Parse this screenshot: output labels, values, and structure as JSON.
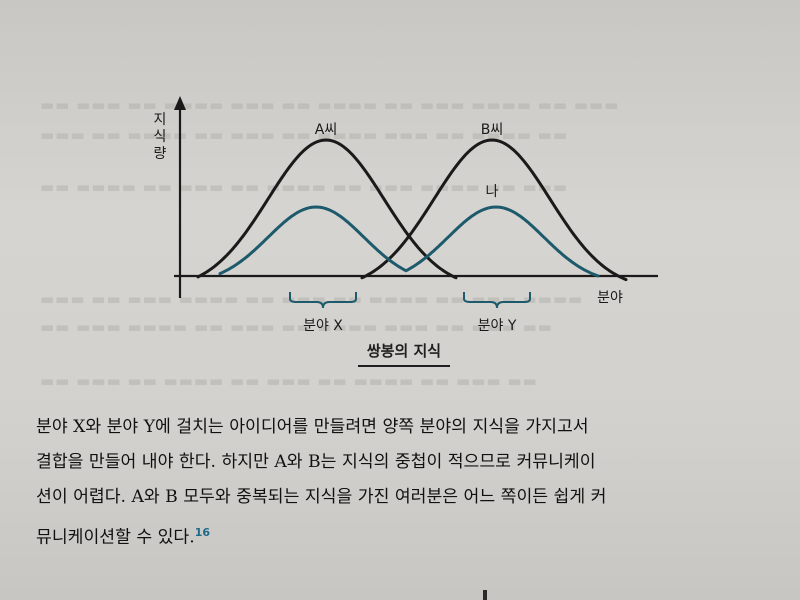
{
  "diagram": {
    "y_axis_label": "지식량",
    "x_axis_label": "분야",
    "curve_a_label": "A씨",
    "curve_b_label": "B씨",
    "curve_na_label": "나",
    "bracket_x_label": "분야 X",
    "bracket_y_label": "분야 Y",
    "caption": "쌍봉의 지식",
    "colors": {
      "ab_curves": "#1a1a1a",
      "na_curve": "#1d5a6c"
    }
  },
  "body": {
    "lines": [
      "분야 X와 분야 Y에 걸치는 아이디어를 만들려면 양쪽 분야의 지식을 가지고서",
      "결합을 만들어 내야 한다. 하지만 A와 B는 지식의 중첩이 적으므로 커뮤니케이",
      "션이 어렵다. A와 B 모두와 중복되는 지식을 가진 여러분은 어느 쪽이든 쉽게 커",
      "뮤니케이션할 수 있다."
    ],
    "footnote": "16"
  }
}
